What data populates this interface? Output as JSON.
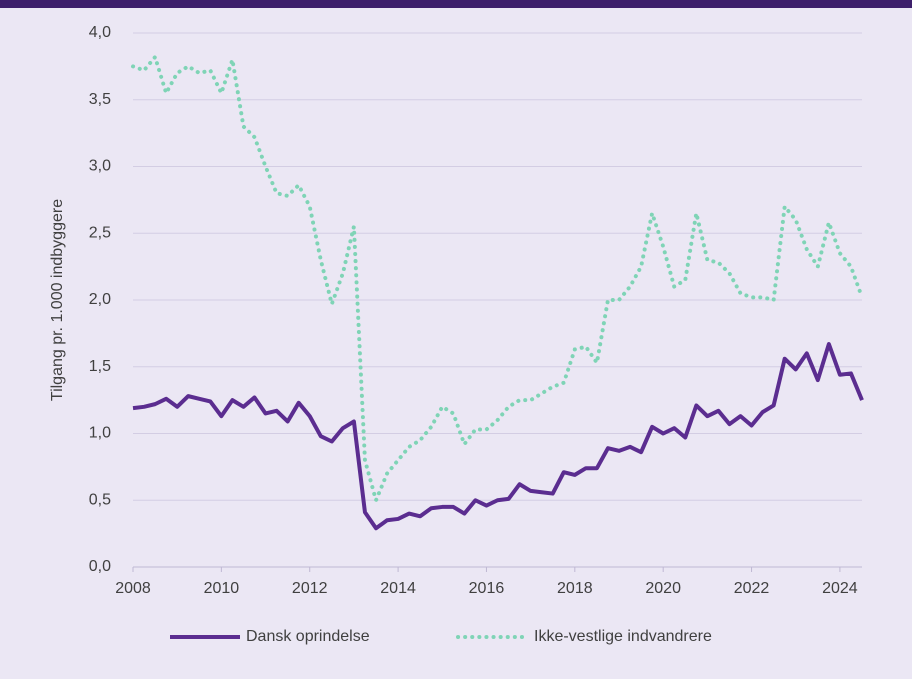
{
  "chart_data": {
    "type": "line",
    "ylabel": "Tilgang pr. 1.000 indbyggere",
    "x": [
      2008,
      2008.25,
      2008.5,
      2008.75,
      2009,
      2009.25,
      2009.5,
      2009.75,
      2010,
      2010.25,
      2010.5,
      2010.75,
      2011,
      2011.25,
      2011.5,
      2011.75,
      2012,
      2012.25,
      2012.5,
      2012.75,
      2013,
      2013.25,
      2013.5,
      2013.75,
      2014,
      2014.25,
      2014.5,
      2014.75,
      2015,
      2015.25,
      2015.5,
      2015.75,
      2016,
      2016.25,
      2016.5,
      2016.75,
      2017,
      2017.25,
      2017.5,
      2017.75,
      2018,
      2018.25,
      2018.5,
      2018.75,
      2019,
      2019.25,
      2019.5,
      2019.75,
      2020,
      2020.25,
      2020.5,
      2020.75,
      2021,
      2021.25,
      2021.5,
      2021.75,
      2022,
      2022.25,
      2022.5,
      2022.75,
      2023,
      2023.25,
      2023.5,
      2023.75,
      2024,
      2024.25,
      2024.5
    ],
    "series": [
      {
        "name": "Dansk oprindelse",
        "color": "#5b2d90",
        "style": "solid",
        "values": [
          1.19,
          1.2,
          1.22,
          1.26,
          1.2,
          1.28,
          1.26,
          1.24,
          1.13,
          1.25,
          1.2,
          1.27,
          1.15,
          1.17,
          1.09,
          1.23,
          1.13,
          0.98,
          0.94,
          1.04,
          1.09,
          0.41,
          0.29,
          0.35,
          0.36,
          0.4,
          0.38,
          0.44,
          0.45,
          0.45,
          0.4,
          0.5,
          0.46,
          0.5,
          0.51,
          0.62,
          0.57,
          0.56,
          0.55,
          0.71,
          0.69,
          0.74,
          0.74,
          0.89,
          0.87,
          0.9,
          0.86,
          1.05,
          1.0,
          1.04,
          0.97,
          1.21,
          1.13,
          1.17,
          1.07,
          1.13,
          1.06,
          1.16,
          1.21,
          1.56,
          1.48,
          1.6,
          1.4,
          1.67,
          1.44,
          1.45,
          1.25
        ]
      },
      {
        "name": "Ikke-vestlige indvandrere",
        "color": "#7fd4b6",
        "style": "dotted",
        "values": [
          3.75,
          3.72,
          3.82,
          3.55,
          3.7,
          3.75,
          3.7,
          3.72,
          3.55,
          3.8,
          3.3,
          3.22,
          3.0,
          2.8,
          2.78,
          2.86,
          2.7,
          2.3,
          1.97,
          2.2,
          2.55,
          0.8,
          0.5,
          0.7,
          0.8,
          0.9,
          0.95,
          1.05,
          1.2,
          1.15,
          0.92,
          1.03,
          1.03,
          1.1,
          1.2,
          1.25,
          1.25,
          1.3,
          1.35,
          1.38,
          1.63,
          1.65,
          1.53,
          2.0,
          2.0,
          2.1,
          2.25,
          2.65,
          2.4,
          2.1,
          2.15,
          2.65,
          2.3,
          2.28,
          2.2,
          2.05,
          2.02,
          2.02,
          2.0,
          2.7,
          2.6,
          2.38,
          2.25,
          2.58,
          2.35,
          2.25,
          2.02
        ]
      }
    ],
    "xlim": [
      2008,
      2024.5
    ],
    "xticks": [
      2008,
      2010,
      2012,
      2014,
      2016,
      2018,
      2020,
      2022,
      2024
    ],
    "ylim": [
      0,
      4
    ],
    "yticks": [
      {
        "value": 0,
        "label": "0,0"
      },
      {
        "value": 0.5,
        "label": "0,5"
      },
      {
        "value": 1,
        "label": "1,0"
      },
      {
        "value": 1.5,
        "label": "1,5"
      },
      {
        "value": 2,
        "label": "2,0"
      },
      {
        "value": 2.5,
        "label": "2,5"
      },
      {
        "value": 3,
        "label": "3,0"
      },
      {
        "value": 3.5,
        "label": "3,5"
      },
      {
        "value": 4,
        "label": "4,0"
      }
    ],
    "grid": true,
    "legend": "bottom"
  }
}
